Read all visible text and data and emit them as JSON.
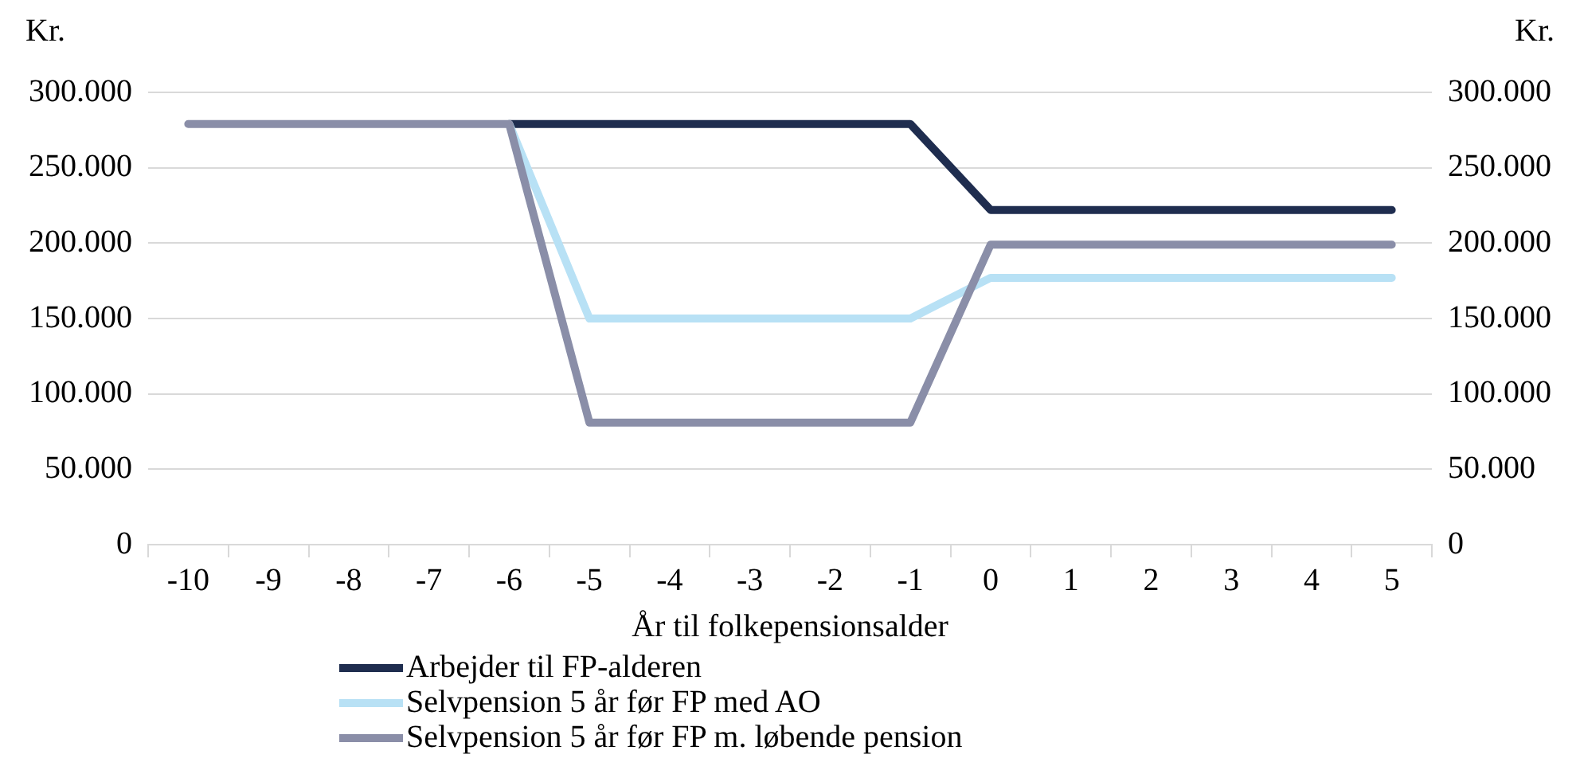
{
  "chart_data": {
    "type": "line",
    "xlabel": "År til folkepensionsalder",
    "ylabel": "Kr.",
    "y2label": "Kr.",
    "categories": [
      "-10",
      "-9",
      "-8",
      "-7",
      "-6",
      "-5",
      "-4",
      "-3",
      "-2",
      "-1",
      "0",
      "1",
      "2",
      "3",
      "4",
      "5"
    ],
    "series": [
      {
        "name": "Arbejder til FP-alderen",
        "color": "#1f2d4f",
        "values": [
          null,
          null,
          null,
          null,
          279000,
          279000,
          279000,
          279000,
          279000,
          279000,
          222000,
          222000,
          222000,
          222000,
          222000,
          222000
        ]
      },
      {
        "name": "Selvpension 5 år før FP med AO",
        "color": "#b8e1f5",
        "values": [
          null,
          null,
          null,
          null,
          279000,
          150000,
          150000,
          150000,
          150000,
          150000,
          177000,
          177000,
          177000,
          177000,
          177000,
          177000
        ]
      },
      {
        "name": "Selvpension 5 år før FP m. løbende pension",
        "color": "#8a8ea8",
        "values": [
          279000,
          279000,
          279000,
          279000,
          279000,
          81000,
          81000,
          81000,
          81000,
          81000,
          199000,
          199000,
          199000,
          199000,
          199000,
          199000
        ]
      }
    ],
    "ylim": [
      0,
      300000
    ],
    "yticks": [
      {
        "value": 0,
        "label": "0"
      },
      {
        "value": 50000,
        "label": "50.000"
      },
      {
        "value": 100000,
        "label": "100.000"
      },
      {
        "value": 150000,
        "label": "150.000"
      },
      {
        "value": 200000,
        "label": "200.000"
      },
      {
        "value": 250000,
        "label": "250.000"
      },
      {
        "value": 300000,
        "label": "300.000"
      }
    ],
    "y2lim": [
      0,
      300000
    ],
    "y2ticks": [
      {
        "value": 0,
        "label": "0"
      },
      {
        "value": 50000,
        "label": "50.000"
      },
      {
        "value": 100000,
        "label": "100.000"
      },
      {
        "value": 150000,
        "label": "150.000"
      },
      {
        "value": 200000,
        "label": "200.000"
      },
      {
        "value": 250000,
        "label": "250.000"
      },
      {
        "value": 300000,
        "label": "300.000"
      }
    ],
    "grid": "y",
    "legend": "bottom",
    "marker": "none",
    "line_style": "solid"
  }
}
